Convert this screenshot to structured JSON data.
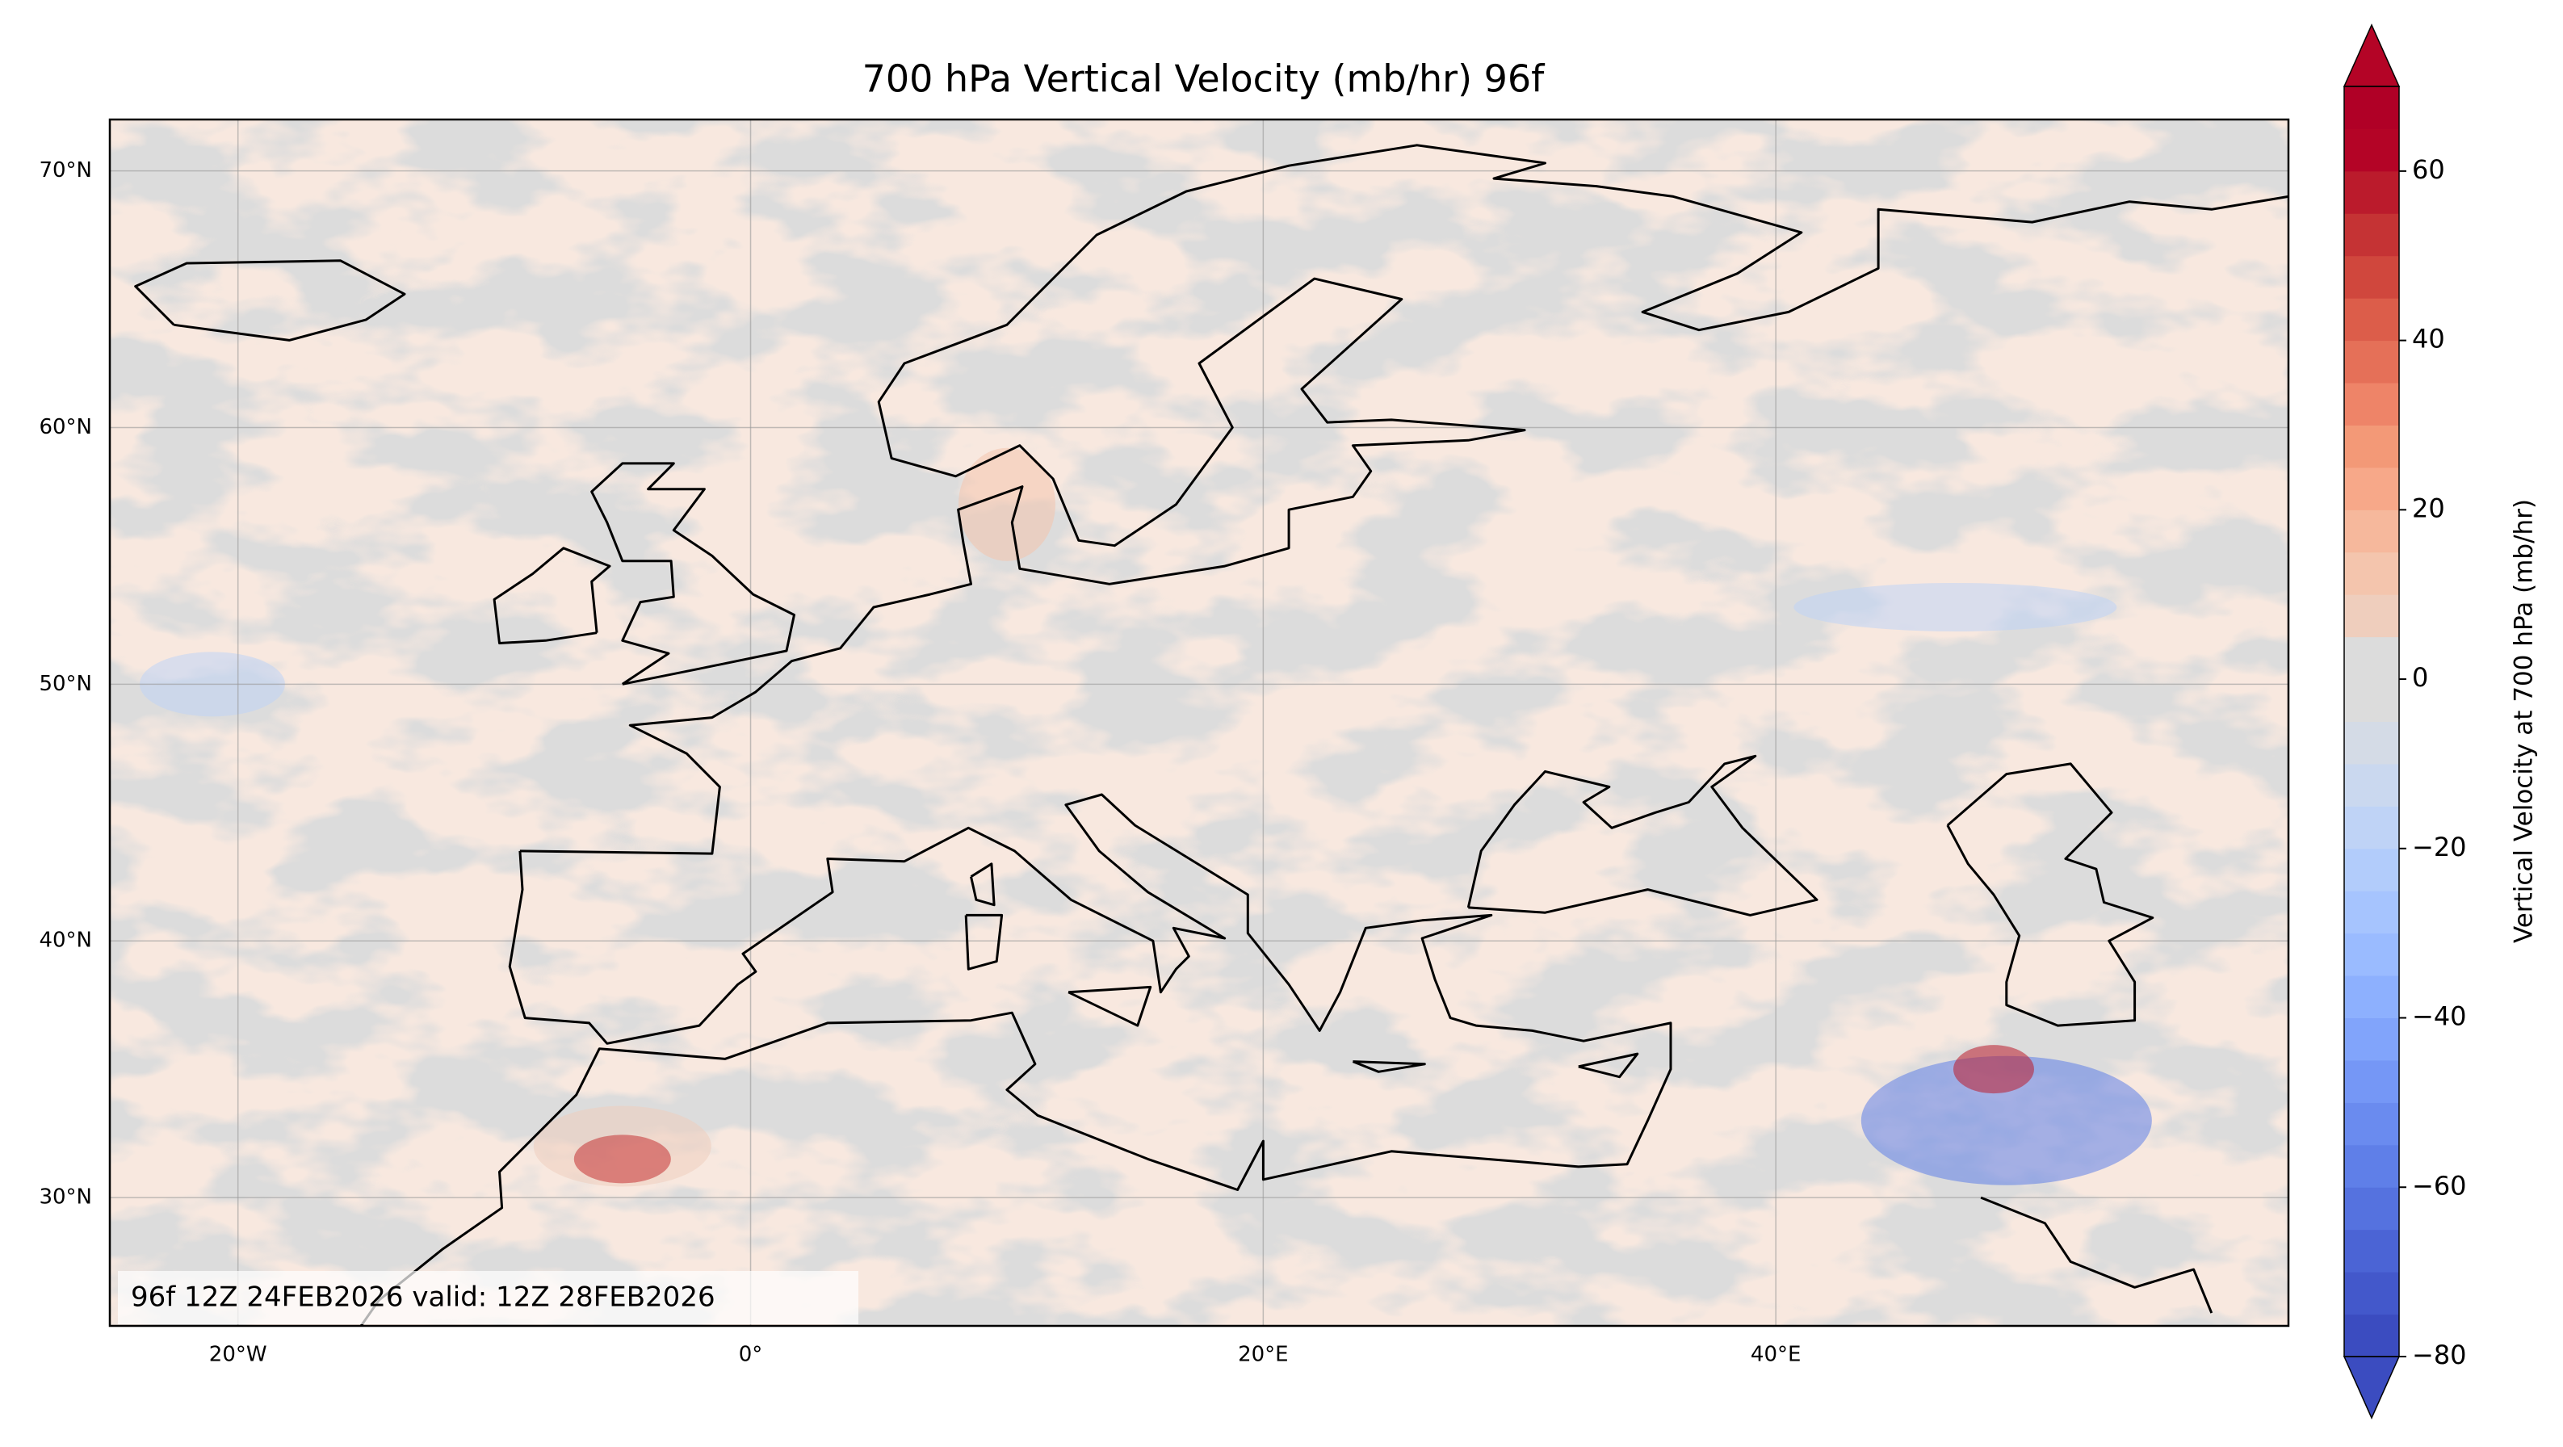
{
  "title": "700 hPa Vertical Velocity (mb/hr) 96f",
  "map": {
    "xlim": [
      -25,
      60
    ],
    "ylim": [
      25,
      72
    ],
    "xticks": [
      {
        "value": -20,
        "label": "20°W"
      },
      {
        "value": 0,
        "label": "0°"
      },
      {
        "value": 20,
        "label": "20°E"
      },
      {
        "value": 40,
        "label": "40°E"
      }
    ],
    "yticks": [
      {
        "value": 30,
        "label": "30°N"
      },
      {
        "value": 40,
        "label": "40°N"
      },
      {
        "value": 50,
        "label": "50°N"
      },
      {
        "value": 60,
        "label": "60°N"
      },
      {
        "value": 70,
        "label": "70°N"
      }
    ],
    "grid": true
  },
  "colorbar": {
    "label": "Vertical Velocity at 700 hPa (mb/hr)",
    "levels": [
      -80,
      -75,
      -70,
      -65,
      -60,
      -55,
      -50,
      -45,
      -40,
      -35,
      -30,
      -25,
      -20,
      -15,
      -10,
      -5,
      0,
      5,
      10,
      15,
      20,
      25,
      30,
      35,
      40,
      45,
      50,
      55,
      60,
      65,
      70
    ],
    "colors": [
      "#3b4cc0",
      "#4358cb",
      "#4b64d5",
      "#5572df",
      "#5f7fe8",
      "#6a8bef",
      "#7597f6",
      "#81a4fb",
      "#8db0fe",
      "#9abbff",
      "#a6c4fe",
      "#b2ccfb",
      "#bfd3f6",
      "#cad8ef",
      "#d4dbe6",
      "#dcdcdc",
      "#dcdcdc",
      "#efcebd",
      "#f4c5ad",
      "#f6b89c",
      "#f7a889",
      "#f39977",
      "#ee8468",
      "#e57058",
      "#dc5d4a",
      "#d0473d",
      "#c53334",
      "#bb1b2c",
      "#b40426",
      "#b00026"
    ],
    "under_color": "#3b4cc0",
    "over_color": "#b40426",
    "ticks": [
      {
        "value": -80,
        "label": "−80"
      },
      {
        "value": -60,
        "label": "−60"
      },
      {
        "value": -40,
        "label": "−40"
      },
      {
        "value": -20,
        "label": "−20"
      },
      0,
      20,
      40,
      60
    ]
  },
  "annotation": "96f 12Z 24FEB2026 valid: 12Z 28FEB2026"
}
